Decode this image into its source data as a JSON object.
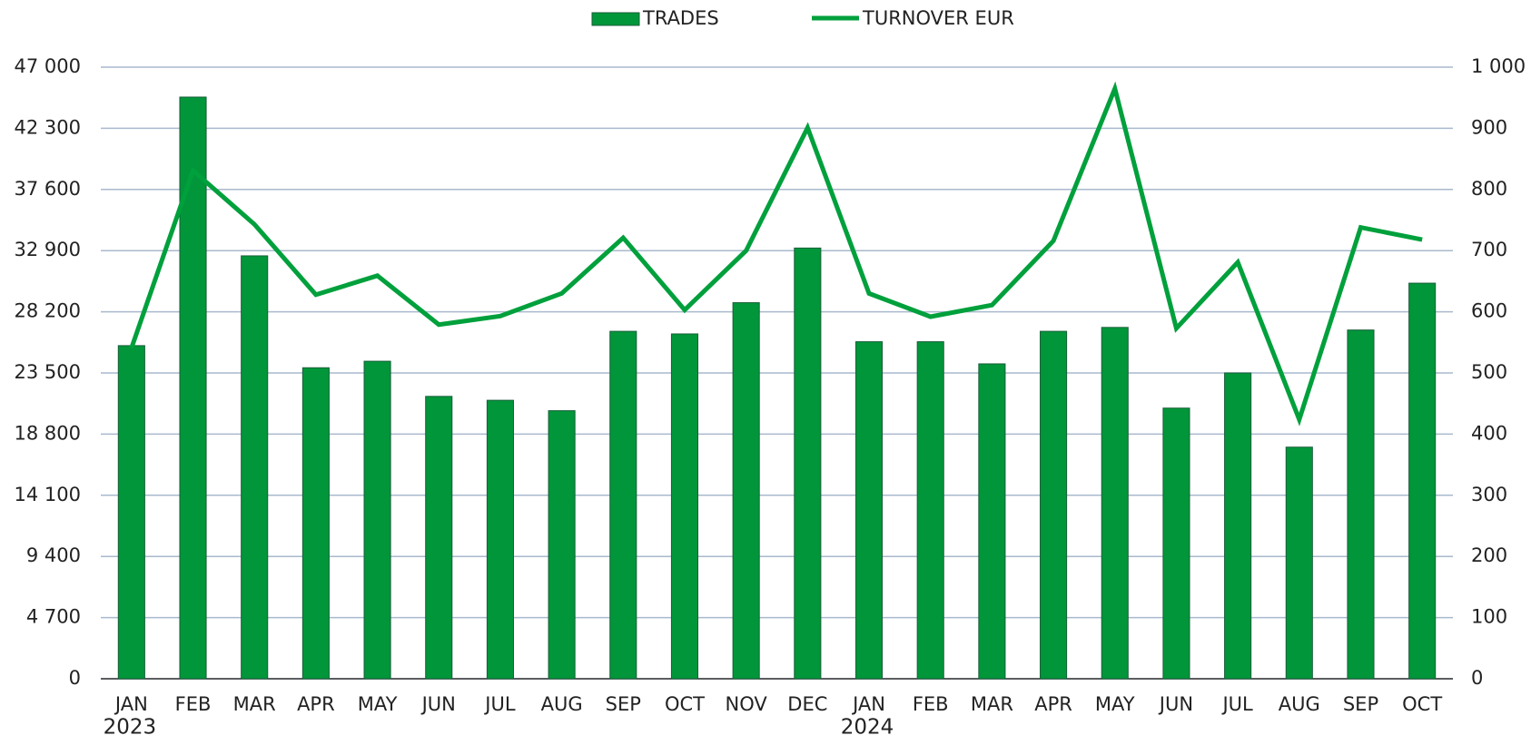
{
  "chart_data": {
    "type": "bar",
    "category_groups": [
      {
        "label": "2023",
        "categories": [
          "JAN",
          "FEB",
          "MAR",
          "APR",
          "MAY",
          "JUN",
          "JUL",
          "AUG",
          "SEP",
          "OCT",
          "NOV",
          "DEC"
        ]
      },
      {
        "label": "2024",
        "categories": [
          "JAN",
          "FEB",
          "MAR",
          "APR",
          "MAY",
          "JUN",
          "JUL",
          "AUG",
          "SEP",
          "OCT"
        ]
      }
    ],
    "series": [
      {
        "name": "TRADES",
        "type": "bar",
        "color": "#009639",
        "edge_color": "#1a5e3a",
        "values": [
          25600,
          44700,
          32500,
          23900,
          24400,
          21700,
          21400,
          20600,
          26700,
          26500,
          28900,
          33100,
          25900,
          25900,
          24200,
          26700,
          27000,
          20800,
          23500,
          17800,
          26800,
          30400
        ]
      },
      {
        "name": "TURNOVER EUR",
        "type": "line",
        "axis": "y2",
        "color": "#00a03c",
        "values": [
          541,
          831,
          743,
          628,
          659,
          579,
          593,
          630,
          721,
          603,
          700,
          901,
          630,
          592,
          611,
          716,
          965,
          573,
          681,
          424,
          738,
          718
        ]
      }
    ],
    "ylim": [
      0,
      47000
    ],
    "yticks": [
      0,
      {
        "value": 4700,
        "label": "4 700"
      },
      {
        "value": 9400,
        "label": "9 400"
      },
      {
        "value": 14100,
        "label": "14 100"
      },
      {
        "value": 18800,
        "label": "18 800"
      },
      {
        "value": 23500,
        "label": "23 500"
      },
      {
        "value": 28200,
        "label": "28 200"
      },
      {
        "value": 32900,
        "label": "32 900"
      },
      {
        "value": 37600,
        "label": "37 600"
      },
      {
        "value": 42300,
        "label": "42 300"
      },
      {
        "value": 47000,
        "label": "47 000"
      }
    ],
    "y2lim": [
      0,
      1000
    ],
    "y2ticks": [
      0,
      100,
      200,
      300,
      400,
      500,
      600,
      700,
      800,
      900,
      {
        "value": 1000,
        "label": "1 000"
      }
    ],
    "grid": true,
    "grid_color": "#a9b9cd",
    "legend": "top"
  }
}
